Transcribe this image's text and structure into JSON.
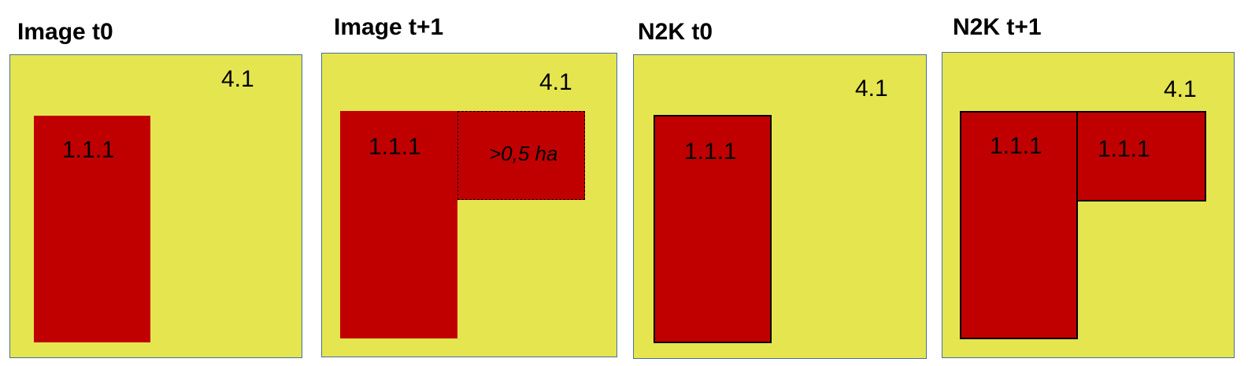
{
  "colors": {
    "background_class": "#e5e550",
    "urban_class": "#c00000",
    "panel_border": "#4a6f9e",
    "outline": "#000000"
  },
  "panels": [
    {
      "title": "Image t0",
      "outer_class": "4.1",
      "patches": [
        {
          "label": "1.1.1"
        }
      ]
    },
    {
      "title": "Image t+1",
      "outer_class": "4.1",
      "patches": [
        {
          "label": "1.1.1"
        },
        {
          "label": ">0,5 ha",
          "style": "dashed-outline"
        }
      ]
    },
    {
      "title": "N2K t0",
      "outer_class": "4.1",
      "patches": [
        {
          "label": "1.1.1"
        }
      ]
    },
    {
      "title": "N2K t+1",
      "outer_class": "4.1",
      "patches": [
        {
          "label": "1.1.1"
        },
        {
          "label": "1.1.1"
        }
      ]
    }
  ]
}
